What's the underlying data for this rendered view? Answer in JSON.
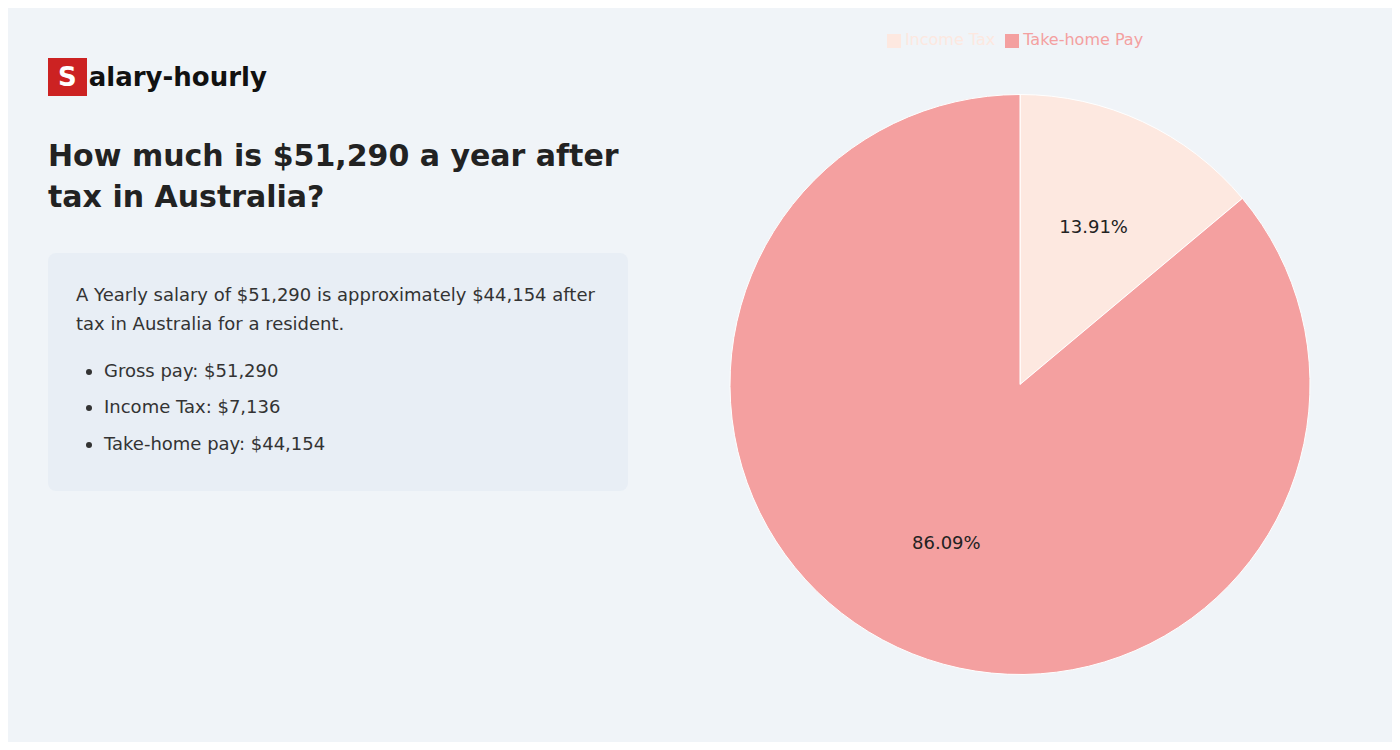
{
  "chart_data": {
    "type": "pie",
    "title": "How much is $51,290 a year after tax in Australia?",
    "annotations": [
      "Salary-hourly",
      "A Yearly salary of $51,290 is approximately $44,154 after tax in Australia for a resident.",
      "Gross pay: $51,290",
      "Income Tax: $7,136",
      "Take-home pay: $44,154"
    ],
    "categories": [
      "Income Tax",
      "Take-home Pay"
    ],
    "values": [
      13.91,
      86.09
    ],
    "value_labels": [
      "13.91%",
      "86.09%"
    ],
    "colors": [
      "#fde8e0",
      "#f4a0a0"
    ],
    "data_labels": true,
    "legend": "top"
  }
}
